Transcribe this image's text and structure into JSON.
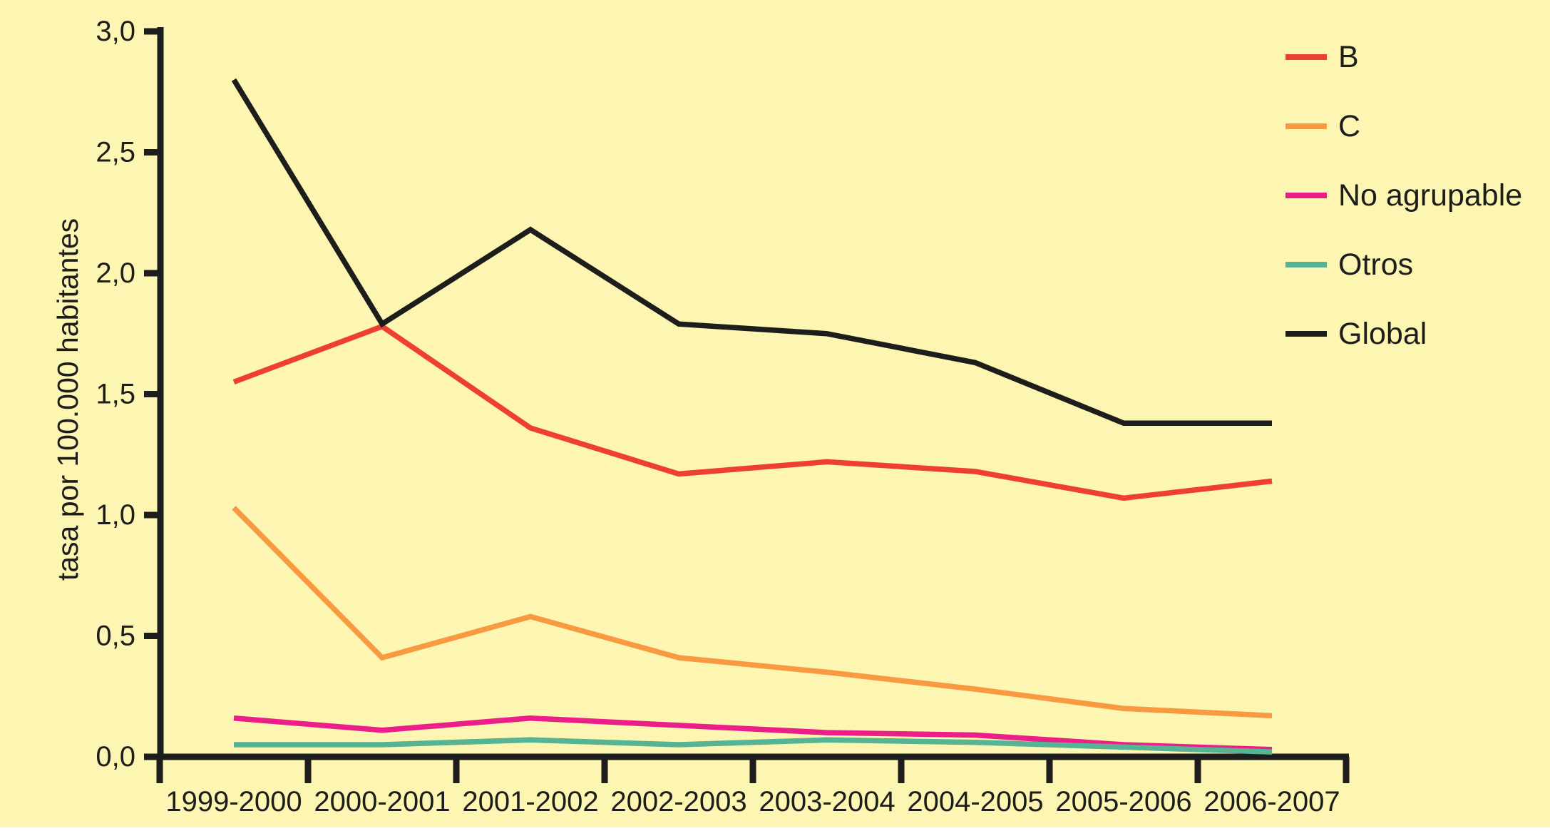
{
  "colors": {
    "background": "#FCF6B2",
    "axis": "#1D1D1B",
    "text": "#1D1D1B"
  },
  "chart_data": {
    "type": "line",
    "title": "",
    "xlabel": "",
    "ylabel": "tasa por 100.000 habitantes",
    "ylim": [
      0,
      3.0
    ],
    "y_tick_step": 0.5,
    "y_tick_labels": [
      "0,0",
      "0,5",
      "1,0",
      "1,5",
      "2,0",
      "2,5",
      "3,0"
    ],
    "decimal_style": "comma",
    "grid": false,
    "legend_position": "top-right",
    "categories": [
      "1999-2000",
      "2000-2001",
      "2001-2002",
      "2002-2003",
      "2003-2004",
      "2004-2005",
      "2005-2006",
      "2006-2007"
    ],
    "series": [
      {
        "name": "B",
        "color": "#EE3F33",
        "values": [
          1.55,
          1.78,
          1.36,
          1.17,
          1.22,
          1.18,
          1.07,
          1.14
        ]
      },
      {
        "name": "C",
        "color": "#F79A41",
        "values": [
          1.03,
          0.41,
          0.58,
          0.41,
          0.35,
          0.28,
          0.2,
          0.17
        ]
      },
      {
        "name": "No agrupable",
        "color": "#EC1E8A",
        "values": [
          0.16,
          0.11,
          0.16,
          0.13,
          0.1,
          0.09,
          0.05,
          0.03
        ]
      },
      {
        "name": "Otros",
        "color": "#56B394",
        "values": [
          0.05,
          0.05,
          0.07,
          0.05,
          0.07,
          0.06,
          0.04,
          0.02
        ]
      },
      {
        "name": "Global",
        "color": "#1D1D1B",
        "values": [
          2.8,
          1.79,
          2.18,
          1.79,
          1.75,
          1.63,
          1.38,
          1.38
        ]
      }
    ]
  }
}
